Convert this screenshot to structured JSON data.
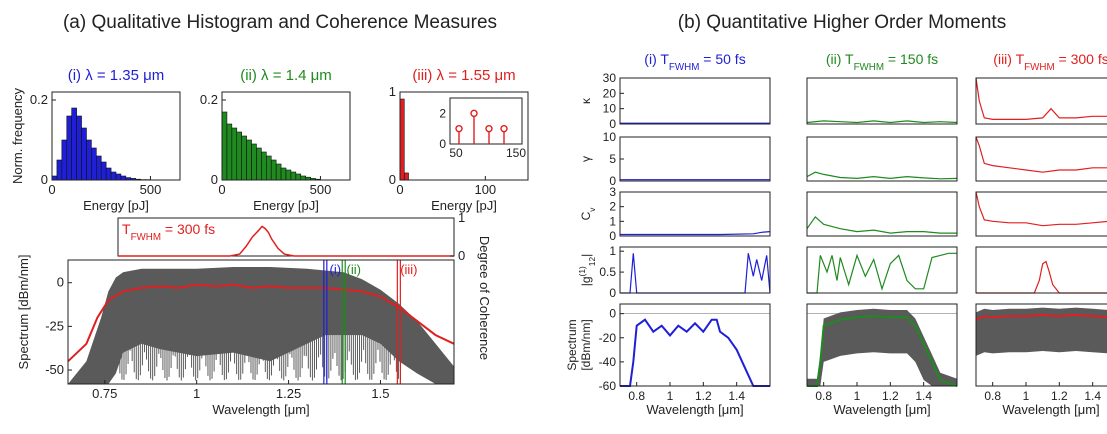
{
  "left_title": "(a) Qualitative Histogram and Coherence Measures",
  "right_title": "(b) Quantitative Higher Order Moments",
  "colors": {
    "blue": "#1f1fd6",
    "green": "#1f8a1f",
    "red": "#e02020",
    "gray": "#5a5a5a",
    "grid": "#9a9a9a"
  },
  "chart_data": [
    {
      "id": "hist-1",
      "type": "bar",
      "title": "(i) λ = 1.35 μm",
      "title_color": "#1f1fd6",
      "xlabel": "Energy [pJ]",
      "ylabel": "Norm. frequency",
      "xlim": [
        0,
        650
      ],
      "ylim": [
        0,
        0.22
      ],
      "xticks": [
        0,
        500
      ],
      "yticks": [
        0,
        0.2
      ],
      "bin_width": 25,
      "bin_starts": [
        0,
        25,
        50,
        75,
        100,
        125,
        150,
        175,
        200,
        225,
        250,
        275,
        300,
        325,
        350,
        375,
        400,
        425,
        450,
        475
      ],
      "values": [
        0.01,
        0.05,
        0.1,
        0.16,
        0.18,
        0.16,
        0.13,
        0.1,
        0.08,
        0.06,
        0.045,
        0.03,
        0.02,
        0.015,
        0.01,
        0.006,
        0.004,
        0.002,
        0.001,
        0.001
      ]
    },
    {
      "id": "hist-2",
      "type": "bar",
      "title": "(ii) λ = 1.4 μm",
      "title_color": "#1f8a1f",
      "xlabel": "Energy [pJ]",
      "xlim": [
        0,
        650
      ],
      "ylim": [
        0,
        0.22
      ],
      "xticks": [
        0,
        500
      ],
      "yticks": [
        0,
        0.2
      ],
      "bin_width": 25,
      "bin_starts": [
        0,
        25,
        50,
        75,
        100,
        125,
        150,
        175,
        200,
        225,
        250,
        275,
        300,
        325,
        350,
        375,
        400,
        425,
        450,
        475
      ],
      "values": [
        0.17,
        0.14,
        0.13,
        0.12,
        0.11,
        0.1,
        0.09,
        0.08,
        0.07,
        0.06,
        0.05,
        0.04,
        0.03,
        0.025,
        0.02,
        0.015,
        0.01,
        0.007,
        0.004,
        0.002
      ]
    },
    {
      "id": "hist-3",
      "type": "bar",
      "title": "(iii) λ = 1.55 μm",
      "title_color": "#e02020",
      "xlabel": "Energy [pJ]",
      "xlim": [
        0,
        150
      ],
      "ylim": [
        0,
        1
      ],
      "xticks": [
        0,
        100
      ],
      "yticks": [
        0,
        1
      ],
      "bin_width": 5,
      "bin_starts": [
        0,
        5
      ],
      "values": [
        0.92,
        0.08
      ],
      "inset": {
        "type": "stem",
        "xlim": [
          40,
          160
        ],
        "ylim": [
          0,
          3
        ],
        "xticks": [
          50,
          150
        ],
        "yticks": [
          0,
          2
        ],
        "x": [
          55,
          80,
          105,
          130
        ],
        "y": [
          1,
          2,
          1,
          1
        ]
      }
    },
    {
      "id": "coherence-top",
      "type": "line",
      "annotation": "T",
      "annotation_sub": "FWHM",
      "annotation_rest": " = 300 fs",
      "ylabel_right": "Degree of Coherence",
      "xlim": [
        0.65,
        1.7
      ],
      "ylim": [
        0,
        1
      ],
      "yticks": [
        0,
        1
      ],
      "x": [
        0.65,
        1.0,
        1.03,
        1.05,
        1.07,
        1.09,
        1.1,
        1.11,
        1.12,
        1.13,
        1.15,
        1.17,
        1.2,
        1.7
      ],
      "y": [
        0,
        0,
        0.05,
        0.25,
        0.5,
        0.68,
        0.78,
        0.72,
        0.62,
        0.45,
        0.2,
        0.05,
        0,
        0
      ]
    },
    {
      "id": "spectrum-main",
      "type": "area",
      "xlabel": "Wavelength [μm]",
      "ylabel": "Spectrum [dBm/nm]",
      "xlim": [
        0.65,
        1.7
      ],
      "ylim": [
        -58,
        13
      ],
      "xticks": [
        0.75,
        1,
        1.25,
        1.5
      ],
      "yticks": [
        0,
        -25,
        -50
      ],
      "markers": [
        {
          "label": "(i)",
          "x": 1.35,
          "color": "#1f1fd6"
        },
        {
          "label": "(ii)",
          "x": 1.4,
          "color": "#1f8a1f"
        },
        {
          "label": "(iii)",
          "x": 1.55,
          "color": "#e02020"
        }
      ],
      "envelope_x": [
        0.65,
        0.7,
        0.74,
        0.76,
        0.78,
        0.8,
        0.85,
        0.9,
        1.0,
        1.1,
        1.2,
        1.3,
        1.35,
        1.4,
        1.45,
        1.5,
        1.55,
        1.6,
        1.65,
        1.7
      ],
      "envelope_top": [
        -58,
        -45,
        -20,
        -5,
        3,
        6,
        8,
        8,
        8,
        9,
        9,
        8,
        7,
        6,
        2,
        -4,
        -12,
        -22,
        -35,
        -48
      ],
      "envelope_bottom": [
        -58,
        -58,
        -58,
        -58,
        -52,
        -40,
        -35,
        -38,
        -42,
        -40,
        -45,
        -35,
        -30,
        -30,
        -30,
        -35,
        -45,
        -52,
        -58,
        -58
      ],
      "mean_x": [
        0.65,
        0.7,
        0.73,
        0.76,
        0.8,
        0.85,
        0.9,
        0.95,
        1.0,
        1.05,
        1.1,
        1.15,
        1.2,
        1.25,
        1.3,
        1.35,
        1.4,
        1.45,
        1.5,
        1.55,
        1.6,
        1.65,
        1.7
      ],
      "mean_y": [
        -45,
        -35,
        -20,
        -10,
        -5,
        -3,
        -2,
        -3,
        -1,
        -2,
        -1,
        -3,
        -2,
        -3,
        -3,
        -3,
        -4,
        -5,
        -8,
        -14,
        -22,
        -30,
        -35
      ]
    },
    {
      "id": "moments",
      "type": "line",
      "columns": [
        {
          "label": "(i) T",
          "sub": "FWHM",
          "rest": " = 50 fs",
          "color": "#1f1fd6"
        },
        {
          "label": "(ii) T",
          "sub": "FWHM",
          "rest": " = 150 fs",
          "color": "#1f8a1f"
        },
        {
          "label": "(iii) T",
          "sub": "FWHM",
          "rest": " = 300 fs",
          "color": "#e02020"
        }
      ],
      "rows": [
        {
          "ylabel": "κ",
          "ylim": [
            0,
            30
          ],
          "yticks": [
            0,
            10,
            20,
            30
          ],
          "col_series": [
            {
              "x": [
                0.7,
                1.6
              ],
              "y": [
                0.5,
                0.5
              ]
            },
            {
              "x": [
                0.7,
                0.8,
                0.9,
                1.0,
                1.1,
                1.2,
                1.3,
                1.4,
                1.5,
                1.6
              ],
              "y": [
                1,
                2,
                1.5,
                1,
                2,
                1,
                2,
                1,
                1.5,
                1
              ]
            },
            {
              "x": [
                0.7,
                0.72,
                0.75,
                0.8,
                0.9,
                1.0,
                1.1,
                1.15,
                1.2,
                1.3,
                1.4,
                1.5,
                1.55,
                1.58,
                1.6
              ],
              "y": [
                30,
                15,
                4,
                3,
                3,
                3,
                4,
                10,
                4,
                4,
                5,
                5,
                12,
                25,
                30
              ]
            }
          ]
        },
        {
          "ylabel": "γ",
          "ylim": [
            0,
            10
          ],
          "yticks": [
            0,
            5,
            10
          ],
          "col_series": [
            {
              "x": [
                0.7,
                1.6
              ],
              "y": [
                0.3,
                0.3
              ]
            },
            {
              "x": [
                0.7,
                0.75,
                0.8,
                0.9,
                1.0,
                1.1,
                1.2,
                1.3,
                1.4,
                1.5,
                1.6
              ],
              "y": [
                1,
                2,
                1.5,
                0.8,
                0.6,
                1,
                0.6,
                1,
                0.7,
                0.5,
                0.6
              ]
            },
            {
              "x": [
                0.7,
                0.72,
                0.75,
                0.8,
                0.9,
                1.0,
                1.1,
                1.2,
                1.3,
                1.4,
                1.5,
                1.55,
                1.6
              ],
              "y": [
                10,
                8,
                4,
                3.5,
                3,
                2.5,
                2,
                2.5,
                2.5,
                3,
                3,
                5,
                10
              ]
            }
          ]
        },
        {
          "ylabel": "C",
          "ylabel_sub": "v",
          "ylim": [
            0,
            3
          ],
          "yticks": [
            0,
            1,
            2,
            3
          ],
          "col_series": [
            {
              "x": [
                0.7,
                1.0,
                1.3,
                1.5,
                1.55,
                1.6
              ],
              "y": [
                0.1,
                0.1,
                0.1,
                0.15,
                0.25,
                0.3
              ]
            },
            {
              "x": [
                0.7,
                0.75,
                0.8,
                0.9,
                1.0,
                1.1,
                1.2,
                1.3,
                1.4,
                1.5,
                1.6
              ],
              "y": [
                0.5,
                1.3,
                0.8,
                0.5,
                0.3,
                0.4,
                0.2,
                0.3,
                0.3,
                0.2,
                0.2
              ]
            },
            {
              "x": [
                0.7,
                0.72,
                0.75,
                0.8,
                0.9,
                1.0,
                1.1,
                1.2,
                1.3,
                1.4,
                1.5,
                1.55,
                1.6
              ],
              "y": [
                3,
                2,
                1.1,
                1.0,
                0.9,
                0.9,
                0.7,
                0.8,
                0.8,
                0.9,
                1.0,
                2,
                3
              ]
            }
          ]
        },
        {
          "ylabel": "|g",
          "ylabel_sup": "(1)",
          "ylabel_sub": "12",
          "ylabel_end": "|",
          "ylim": [
            0,
            1.1
          ],
          "yticks": [
            0,
            0.5,
            1
          ],
          "col_series": [
            {
              "x": [
                0.7,
                0.76,
                0.78,
                0.8,
                1.45,
                1.47,
                1.5,
                1.52,
                1.55,
                1.58,
                1.6
              ],
              "y": [
                0,
                0,
                0.95,
                0,
                0,
                0.95,
                0.4,
                0.8,
                0.3,
                0.9,
                0
              ]
            },
            {
              "x": [
                0.7,
                0.76,
                0.78,
                0.82,
                0.85,
                0.88,
                0.9,
                0.95,
                1.0,
                1.05,
                1.1,
                1.15,
                1.2,
                1.25,
                1.3,
                1.35,
                1.4,
                1.45,
                1.5,
                1.55,
                1.6
              ],
              "y": [
                0,
                0,
                0.9,
                0.5,
                0.9,
                0.3,
                0.85,
                0.2,
                0.9,
                0.4,
                0.8,
                0.1,
                0.7,
                0.9,
                0.3,
                0.1,
                0.1,
                0.85,
                0.9,
                0.95,
                0.95
              ]
            },
            {
              "x": [
                0.7,
                1.05,
                1.08,
                1.1,
                1.12,
                1.14,
                1.16,
                1.2,
                1.6
              ],
              "y": [
                0,
                0,
                0.3,
                0.7,
                0.75,
                0.5,
                0.2,
                0,
                0
              ]
            }
          ]
        },
        {
          "ylabel": "Spectrum",
          "ylabel2": "[dBm/nm]",
          "ylim": [
            -60,
            8
          ],
          "yticks": [
            -60,
            -40,
            -20,
            0
          ],
          "xlabel": "Wavelength [μm]",
          "col_series": [
            {
              "x": [
                0.7,
                0.76,
                0.78,
                0.8,
                0.85,
                0.9,
                0.95,
                1.0,
                1.05,
                1.1,
                1.15,
                1.2,
                1.25,
                1.28,
                1.3,
                1.35,
                1.4,
                1.45,
                1.5,
                1.6
              ],
              "y": [
                -60,
                -60,
                -40,
                -10,
                -5,
                -15,
                -10,
                -18,
                -10,
                -15,
                -8,
                -15,
                -5,
                -5,
                -15,
                -20,
                -30,
                -45,
                -60,
                -60
              ]
            },
            {
              "x": [
                0.7,
                0.76,
                0.78,
                0.8,
                0.9,
                1.0,
                1.1,
                1.2,
                1.3,
                1.35,
                1.4,
                1.45,
                1.5,
                1.6
              ],
              "y": [
                -60,
                -60,
                -40,
                -10,
                -5,
                -3,
                -2,
                -3,
                -3,
                -10,
                -25,
                -40,
                -55,
                -60
              ]
            },
            {
              "x": [
                0.7,
                0.75,
                0.8,
                0.9,
                1.0,
                1.1,
                1.2,
                1.3,
                1.4,
                1.5,
                1.6
              ],
              "y": [
                -5,
                -2,
                -3,
                -2,
                -2,
                -1,
                -2,
                -1,
                -2,
                -3,
                -5
              ]
            }
          ]
        }
      ],
      "xlim": [
        0.7,
        1.6
      ],
      "xticks": [
        0.8,
        1,
        1.2,
        1.4
      ]
    }
  ]
}
